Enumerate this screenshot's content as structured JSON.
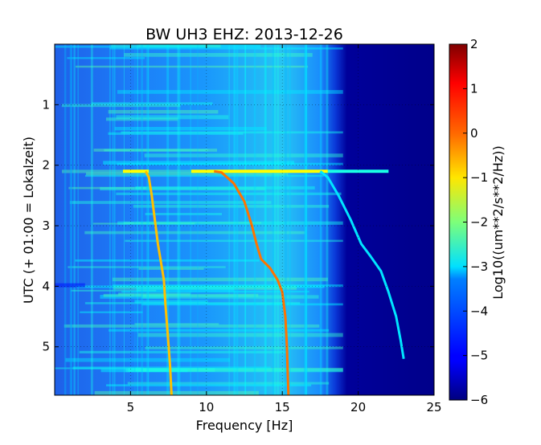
{
  "chart_data": {
    "type": "heatmap",
    "title": "BW UH3 EHZ: 2013-12-26",
    "xlabel": "Frequency [Hz]",
    "ylabel": "UTC (+ 01:00 = Lokalzeit)",
    "xlim": [
      0,
      25
    ],
    "ylim": [
      0,
      5.8
    ],
    "y_inverted": true,
    "x_ticks": [
      5,
      10,
      15,
      20,
      25
    ],
    "x_tick_labels": [
      "5",
      "10",
      "15",
      "20",
      "25"
    ],
    "y_ticks": [
      1,
      2,
      3,
      4,
      5
    ],
    "y_tick_labels": [
      "1",
      "2",
      "3",
      "4",
      "5"
    ],
    "grid": true,
    "colormap": "jet",
    "colorbar": {
      "label": "Log10((um**2/s**2/Hz))",
      "range": [
        -6,
        2
      ],
      "ticks": [
        2,
        1,
        0,
        -1,
        -2,
        -3,
        -4,
        -5,
        -6
      ],
      "tick_labels": [
        "2",
        "1",
        "0",
        "−1",
        "−2",
        "−3",
        "−4",
        "−5",
        "−6"
      ]
    },
    "background_level": {
      "description_values": {
        "freq_hz": [
          0,
          5,
          10,
          15,
          18,
          19,
          25
        ],
        "log_psd": [
          -3.9,
          -3.6,
          -3.3,
          -3.0,
          -3.4,
          -5.9,
          -5.95
        ]
      }
    },
    "horizontal_event": {
      "time_utc_h": 2.1,
      "segments": [
        {
          "from_hz": 4.5,
          "to_hz": 6.2,
          "log_psd": -1.0
        },
        {
          "from_hz": 9.0,
          "to_hz": 18.0,
          "log_psd": -1.0
        },
        {
          "from_hz": 18.0,
          "to_hz": 22.0,
          "log_psd": -2.8
        }
      ]
    },
    "series": [
      {
        "points": [
          [
            6.0,
            2.1
          ],
          [
            6.2,
            2.2
          ],
          [
            6.4,
            2.5
          ],
          [
            6.6,
            2.9
          ],
          [
            6.8,
            3.3
          ],
          [
            7.0,
            3.6
          ],
          [
            7.2,
            3.9
          ],
          [
            7.3,
            4.3
          ],
          [
            7.45,
            4.8
          ],
          [
            7.6,
            5.3
          ],
          [
            7.7,
            5.8
          ]
        ],
        "log_psd": -0.5
      },
      {
        "points": [
          [
            10.5,
            2.1
          ],
          [
            11.0,
            2.12
          ],
          [
            11.8,
            2.3
          ],
          [
            12.5,
            2.6
          ],
          [
            13.0,
            3.0
          ],
          [
            13.3,
            3.3
          ],
          [
            13.6,
            3.55
          ],
          [
            14.2,
            3.7
          ],
          [
            14.7,
            3.9
          ],
          [
            15.0,
            4.1
          ],
          [
            15.2,
            4.5
          ],
          [
            15.3,
            5.0
          ],
          [
            15.4,
            5.8
          ]
        ],
        "log_psd": 0.1
      },
      {
        "points": [
          [
            17.5,
            2.1
          ],
          [
            18.0,
            2.2
          ],
          [
            18.7,
            2.5
          ],
          [
            19.5,
            2.9
          ],
          [
            20.2,
            3.3
          ],
          [
            20.8,
            3.5
          ],
          [
            21.5,
            3.75
          ],
          [
            22.0,
            4.1
          ],
          [
            22.5,
            4.5
          ],
          [
            22.8,
            4.9
          ],
          [
            23.0,
            5.2
          ]
        ],
        "log_psd": -3.2
      }
    ]
  }
}
